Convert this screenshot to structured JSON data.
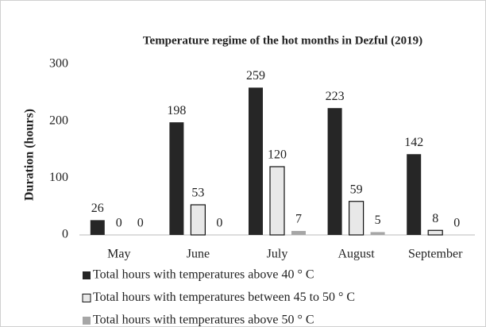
{
  "chart_data": {
    "type": "bar",
    "title": "Temperature regime of the hot months in Dezful (2019)",
    "y_label": "Duration (hours)",
    "categories": [
      "May",
      "June",
      "July",
      "August",
      "September"
    ],
    "series": [
      {
        "name": "Total hours with temperatures above 40 ° C",
        "color": "#262626",
        "values": [
          26,
          198,
          259,
          223,
          142
        ]
      },
      {
        "name": "Total hours with temperatures between 45 to 50 ° C",
        "color": "#e8e8e8",
        "values": [
          0,
          53,
          120,
          59,
          8
        ]
      },
      {
        "name": "Total hours with temperatures above 50 ° C",
        "color": "#a6a6a6",
        "values": [
          0,
          0,
          7,
          5,
          0
        ]
      }
    ],
    "ylim": [
      0,
      300
    ],
    "yticks": [
      0,
      100,
      200,
      300
    ],
    "grid": false,
    "legend": "bottom"
  }
}
